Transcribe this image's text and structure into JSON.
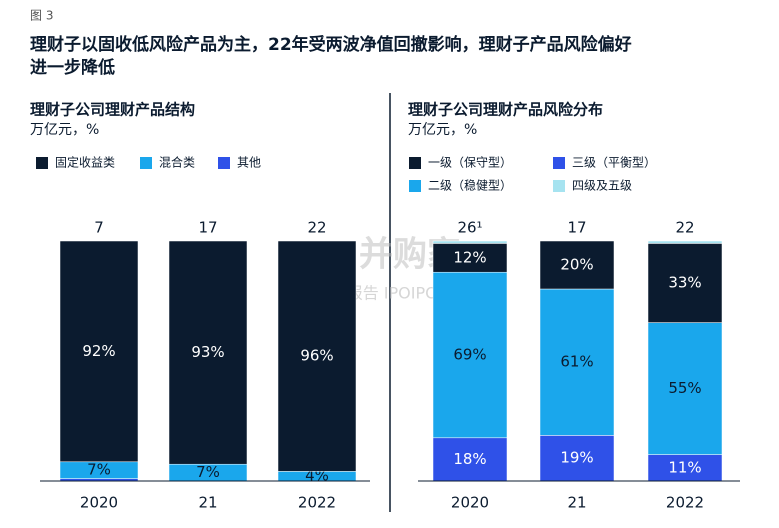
{
  "figure_label": "图 3",
  "title_lines": [
    "理财子以固收低风险产品为主，22年受两波净值回撤影响，理财子产品风险偏好",
    "进一步降低"
  ],
  "watermark": [
    "并购家",
    "行业报告 IPOIPO.CN"
  ],
  "chart_data": [
    {
      "type": "bar",
      "stacked": true,
      "title": "理财子公司理财产品结构",
      "unit": "万亿元，%",
      "categories": [
        "2020",
        "21",
        "2022"
      ],
      "ylim": [
        0,
        100
      ],
      "totals": {
        "values": [
          7,
          17,
          22
        ]
      },
      "series": [
        {
          "name": "其他",
          "color": "#2f51e8",
          "label_color": "#ffffff",
          "values": [
            1,
            0,
            0
          ]
        },
        {
          "name": "混合类",
          "color": "#1aa7ec",
          "label_color": "#0b1b2f",
          "values": [
            7,
            7,
            4
          ],
          "value_labels": [
            "7%",
            "7%",
            "4%"
          ]
        },
        {
          "name": "固定收益类",
          "color": "#0b1b2f",
          "label_color": "#ffffff",
          "values": [
            92,
            93,
            96
          ],
          "value_labels": [
            "92%",
            "93%",
            "96%"
          ]
        }
      ]
    },
    {
      "type": "bar",
      "stacked": true,
      "title": "理财子公司理财产品风险分布",
      "unit": "万亿元，%",
      "categories": [
        "2020",
        "21",
        "2022"
      ],
      "ylim": [
        0,
        100
      ],
      "totals": {
        "values": [
          26,
          17,
          22
        ],
        "value_labels": [
          "26¹",
          "17",
          "22"
        ]
      },
      "series": [
        {
          "name": "三级（平衡型）",
          "color": "#2f51e8",
          "label_color": "#ffffff",
          "values": [
            18,
            19,
            11
          ],
          "value_labels": [
            "18%",
            "19%",
            "11%"
          ]
        },
        {
          "name": "二级（稳健型）",
          "color": "#1aa7ec",
          "label_color": "#0b1b2f",
          "values": [
            69,
            61,
            55
          ],
          "value_labels": [
            "69%",
            "61%",
            "55%"
          ]
        },
        {
          "name": "一级（保守型）",
          "color": "#0b1b2f",
          "label_color": "#ffffff",
          "values": [
            12,
            20,
            33
          ],
          "value_labels": [
            "12%",
            "20%",
            "33%"
          ]
        },
        {
          "name": "四级及五级",
          "color": "#a6e3f0",
          "label_color": "#0b1b2f",
          "values": [
            1,
            0,
            1
          ]
        }
      ]
    }
  ]
}
